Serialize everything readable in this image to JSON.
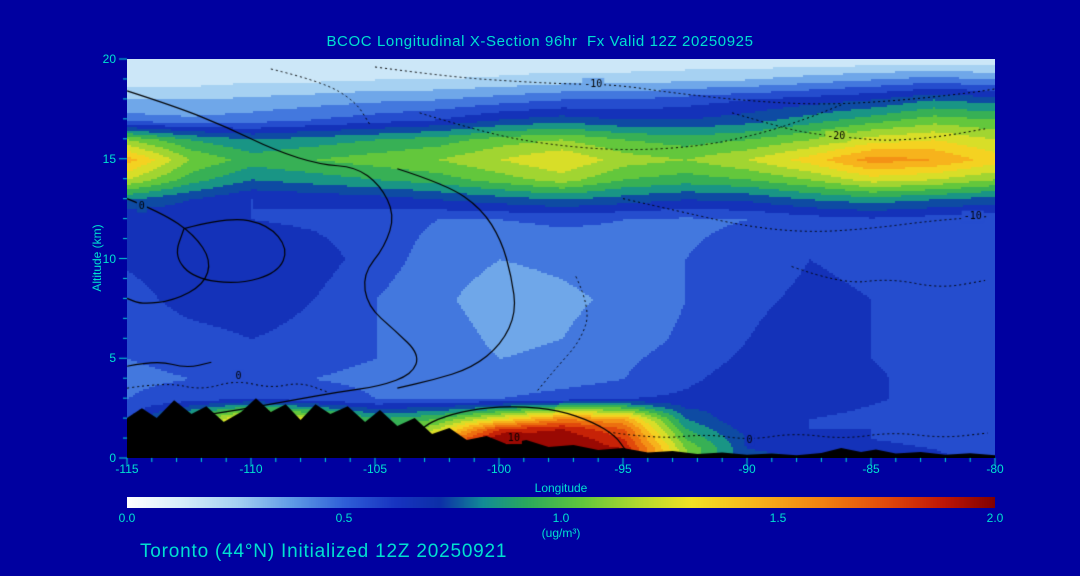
{
  "figure": {
    "title": "BCOC Longitudinal X-Section 96hr  Fx Valid 12Z 20250925",
    "caption": "Toronto (44°N) Initialized 12Z 20250921",
    "colors": {
      "background": "#0000a0",
      "text": "#00e0d0",
      "contour_line": "#000000",
      "terrain": "#000000"
    }
  },
  "chart_data": {
    "type": "heatmap",
    "title": "BCOC Longitudinal X-Section 96hr  Fx Valid 12Z 20250925",
    "caption": "Toronto (44°N) Initialized 12Z 20250921",
    "xlabel": "Longitude",
    "ylabel": "Altitude (km)",
    "units": "(ug/m³)",
    "xlim": [
      -115,
      -80
    ],
    "ylim": [
      0,
      20
    ],
    "x_ticks": [
      -115,
      -110,
      -105,
      -100,
      -95,
      -90,
      -85,
      -80
    ],
    "x_minor_step": 1,
    "y_ticks": [
      0,
      5,
      10,
      15,
      20
    ],
    "y_minor_step": 1,
    "grid_on": false,
    "colorbar": {
      "min": 0.0,
      "max": 2.0,
      "tick_labels": [
        "0.0",
        "0.5",
        "1.0",
        "1.5",
        "2.0"
      ]
    },
    "colormap": {
      "stops": [
        [
          0.0,
          "#ffffff"
        ],
        [
          0.12,
          "#d8eefa"
        ],
        [
          0.25,
          "#a6d1f2"
        ],
        [
          0.38,
          "#5f9be6"
        ],
        [
          0.5,
          "#2f5fd8"
        ],
        [
          0.62,
          "#1733c0"
        ],
        [
          0.72,
          "#0c2fa8"
        ],
        [
          0.82,
          "#128c96"
        ],
        [
          0.92,
          "#2aa95d"
        ],
        [
          1.05,
          "#63c73c"
        ],
        [
          1.18,
          "#b4d92e"
        ],
        [
          1.3,
          "#f2e224"
        ],
        [
          1.45,
          "#f7b31c"
        ],
        [
          1.6,
          "#f28211"
        ],
        [
          1.75,
          "#e1490b"
        ],
        [
          1.88,
          "#bf1606"
        ],
        [
          2.0,
          "#7f0000"
        ]
      ],
      "level_step": 0.1
    },
    "grid": {
      "lons": [
        -115,
        -112.5,
        -110,
        -107.5,
        -105,
        -102.5,
        -100,
        -97.5,
        -95,
        -92.5,
        -90,
        -87.5,
        -85,
        -82.5,
        -80
      ],
      "alts": [
        0,
        0.5,
        1,
        1.5,
        2,
        3,
        4,
        5,
        6,
        8,
        10,
        12,
        13,
        14,
        15,
        16,
        17,
        18,
        19,
        20
      ],
      "values": [
        [
          0.6,
          0.7,
          0.8,
          0.8,
          0.8,
          1.5,
          1.95,
          2.0,
          1.9,
          1.1,
          0.72,
          0.7,
          0.68,
          0.62,
          0.58
        ],
        [
          0.6,
          0.7,
          0.8,
          0.8,
          0.85,
          1.6,
          2.0,
          2.0,
          1.9,
          1.1,
          0.7,
          0.68,
          0.65,
          0.6,
          0.55
        ],
        [
          0.6,
          0.8,
          1.0,
          0.9,
          0.85,
          1.5,
          2.0,
          2.0,
          1.8,
          1.0,
          0.7,
          0.65,
          0.6,
          0.55,
          0.55
        ],
        [
          0.6,
          1.0,
          1.2,
          1.0,
          0.85,
          1.2,
          1.8,
          1.9,
          1.7,
          0.9,
          0.65,
          0.6,
          0.6,
          0.55,
          0.5
        ],
        [
          0.6,
          1.0,
          1.4,
          1.2,
          0.9,
          1.0,
          1.3,
          1.6,
          1.5,
          0.8,
          0.6,
          0.6,
          0.55,
          0.5,
          0.5
        ],
        [
          0.5,
          0.55,
          0.6,
          0.55,
          0.5,
          0.5,
          0.5,
          0.55,
          0.6,
          0.62,
          0.68,
          0.7,
          0.62,
          0.55,
          0.5
        ],
        [
          0.48,
          0.5,
          0.52,
          0.5,
          0.48,
          0.45,
          0.42,
          0.45,
          0.5,
          0.58,
          0.65,
          0.68,
          0.62,
          0.55,
          0.5
        ],
        [
          0.5,
          0.52,
          0.55,
          0.52,
          0.5,
          0.45,
          0.4,
          0.42,
          0.48,
          0.55,
          0.62,
          0.65,
          0.6,
          0.55,
          0.52
        ],
        [
          0.5,
          0.55,
          0.6,
          0.55,
          0.5,
          0.45,
          0.38,
          0.4,
          0.45,
          0.52,
          0.6,
          0.65,
          0.6,
          0.55,
          0.5
        ],
        [
          0.55,
          0.65,
          0.68,
          0.6,
          0.5,
          0.42,
          0.35,
          0.38,
          0.42,
          0.5,
          0.58,
          0.62,
          0.6,
          0.55,
          0.5
        ],
        [
          0.62,
          0.68,
          0.7,
          0.65,
          0.55,
          0.45,
          0.4,
          0.42,
          0.45,
          0.5,
          0.55,
          0.6,
          0.58,
          0.55,
          0.5
        ],
        [
          0.6,
          0.62,
          0.6,
          0.58,
          0.55,
          0.5,
          0.5,
          0.52,
          0.5,
          0.48,
          0.5,
          0.55,
          0.58,
          0.55,
          0.52
        ],
        [
          0.8,
          0.7,
          0.6,
          0.62,
          0.65,
          0.7,
          0.75,
          0.8,
          0.75,
          0.7,
          0.72,
          0.8,
          0.85,
          0.8,
          0.75
        ],
        [
          1.2,
          0.95,
          0.8,
          0.85,
          0.9,
          0.95,
          1.05,
          1.15,
          1.0,
          0.95,
          1.0,
          1.1,
          1.25,
          1.2,
          1.1
        ],
        [
          1.45,
          1.1,
          0.95,
          1.0,
          1.05,
          1.1,
          1.2,
          1.3,
          1.15,
          1.1,
          1.2,
          1.35,
          1.55,
          1.5,
          1.35
        ],
        [
          1.1,
          0.9,
          0.8,
          0.85,
          0.9,
          0.95,
          1.05,
          1.1,
          1.0,
          0.95,
          1.0,
          1.1,
          1.25,
          1.3,
          1.2
        ],
        [
          0.45,
          0.42,
          0.45,
          0.5,
          0.55,
          0.6,
          0.7,
          0.75,
          0.7,
          0.7,
          0.75,
          0.85,
          0.95,
          1.05,
          1.0
        ],
        [
          0.3,
          0.3,
          0.32,
          0.35,
          0.38,
          0.4,
          0.45,
          0.5,
          0.5,
          0.55,
          0.6,
          0.65,
          0.7,
          0.8,
          0.75
        ],
        [
          0.15,
          0.15,
          0.18,
          0.18,
          0.2,
          0.2,
          0.22,
          0.25,
          0.25,
          0.28,
          0.3,
          0.35,
          0.4,
          0.45,
          0.4
        ],
        [
          0.12,
          0.12,
          0.12,
          0.12,
          0.12,
          0.12,
          0.12,
          0.12,
          0.12,
          0.12,
          0.12,
          0.12,
          0.12,
          0.12,
          0.12
        ]
      ]
    },
    "terrain": [
      [
        -115,
        2.0
      ],
      [
        -114.4,
        2.5
      ],
      [
        -113.8,
        2.0
      ],
      [
        -113.1,
        2.9
      ],
      [
        -112.4,
        2.2
      ],
      [
        -111.8,
        2.6
      ],
      [
        -111.1,
        1.8
      ],
      [
        -110.4,
        2.3
      ],
      [
        -109.8,
        3.0
      ],
      [
        -109.2,
        2.3
      ],
      [
        -108.6,
        2.7
      ],
      [
        -108.0,
        1.9
      ],
      [
        -107.4,
        2.7
      ],
      [
        -106.8,
        2.2
      ],
      [
        -106.1,
        2.6
      ],
      [
        -105.4,
        1.8
      ],
      [
        -104.8,
        2.4
      ],
      [
        -104.1,
        1.6
      ],
      [
        -103.4,
        2.0
      ],
      [
        -102.7,
        1.2
      ],
      [
        -102.0,
        1.5
      ],
      [
        -101.3,
        0.9
      ],
      [
        -100.5,
        1.1
      ],
      [
        -99.7,
        0.7
      ],
      [
        -98.9,
        0.9
      ],
      [
        -98.0,
        0.55
      ],
      [
        -97.0,
        0.65
      ],
      [
        -96.0,
        0.4
      ],
      [
        -95.0,
        0.5
      ],
      [
        -94.0,
        0.28
      ],
      [
        -93.0,
        0.35
      ],
      [
        -92.0,
        0.2
      ],
      [
        -91.0,
        0.28
      ],
      [
        -90.0,
        0.16
      ],
      [
        -89.0,
        0.22
      ],
      [
        -88.0,
        0.14
      ],
      [
        -87.0,
        0.25
      ],
      [
        -86.2,
        0.5
      ],
      [
        -85.4,
        0.3
      ],
      [
        -84.8,
        0.42
      ],
      [
        -84.0,
        0.22
      ],
      [
        -83.0,
        0.3
      ],
      [
        -82.0,
        0.16
      ],
      [
        -81.0,
        0.24
      ],
      [
        -80.0,
        0.14
      ]
    ],
    "contours": [
      {
        "style": "solid",
        "label": "0",
        "label_pos": [
          -114.4,
          12.6
        ],
        "points": [
          [
            -115,
            13.0
          ],
          [
            -113.6,
            12.3
          ],
          [
            -112.3,
            11.2
          ],
          [
            -111.6,
            9.9
          ],
          [
            -111.9,
            8.7
          ],
          [
            -113.1,
            7.9
          ],
          [
            -114.4,
            7.7
          ],
          [
            -115,
            8.0
          ]
        ]
      },
      {
        "style": "solid",
        "label": "",
        "points": [
          [
            -115,
            18.4
          ],
          [
            -113,
            17.6
          ],
          [
            -111,
            16.6
          ],
          [
            -109,
            15.4
          ],
          [
            -107.2,
            14.7
          ],
          [
            -105.8,
            14.6
          ],
          [
            -104.8,
            13.7
          ],
          [
            -104.2,
            12.2
          ],
          [
            -104.6,
            10.6
          ],
          [
            -105.5,
            9.2
          ],
          [
            -105.3,
            7.6
          ],
          [
            -104.2,
            6.4
          ],
          [
            -103.2,
            5.2
          ],
          [
            -103.5,
            4.2
          ],
          [
            -104.8,
            3.6
          ],
          [
            -106.5,
            3.3
          ],
          [
            -108.3,
            2.9
          ],
          [
            -110.1,
            2.5
          ],
          [
            -111.6,
            2.2
          ]
        ]
      },
      {
        "style": "solid",
        "label": "",
        "points": [
          [
            -112.7,
            11.5
          ],
          [
            -110.9,
            12.1
          ],
          [
            -109.3,
            11.7
          ],
          [
            -108.5,
            10.5
          ],
          [
            -108.9,
            9.3
          ],
          [
            -110.5,
            8.7
          ],
          [
            -112.3,
            9.0
          ],
          [
            -113.1,
            10.1
          ],
          [
            -112.7,
            11.5
          ]
        ]
      },
      {
        "style": "solid",
        "label": "",
        "points": [
          [
            -104.1,
            14.5
          ],
          [
            -102.1,
            13.7
          ],
          [
            -100.7,
            12.5
          ],
          [
            -99.9,
            10.9
          ],
          [
            -99.5,
            9.1
          ],
          [
            -99.3,
            7.3
          ],
          [
            -99.9,
            5.7
          ],
          [
            -101.1,
            4.5
          ],
          [
            -102.7,
            3.9
          ],
          [
            -104.1,
            3.5
          ]
        ]
      },
      {
        "style": "solid",
        "label": "10",
        "label_pos": [
          -99.4,
          1.0
        ],
        "points": [
          [
            -103.8,
            0.4
          ],
          [
            -103.2,
            1.5
          ],
          [
            -102.2,
            2.1
          ],
          [
            -100.8,
            2.5
          ],
          [
            -99.2,
            2.6
          ],
          [
            -97.6,
            2.4
          ],
          [
            -96.2,
            1.8
          ],
          [
            -95.3,
            1.1
          ],
          [
            -94.9,
            0.4
          ]
        ]
      },
      {
        "style": "solid",
        "label": "",
        "points": [
          [
            -115,
            4.6
          ],
          [
            -113.8,
            4.9
          ],
          [
            -112.6,
            4.5
          ],
          [
            -111.6,
            4.8
          ]
        ]
      },
      {
        "style": "dotted",
        "label": "0",
        "label_pos": [
          -110.5,
          4.1
        ],
        "points": [
          [
            -115,
            3.5
          ],
          [
            -113.4,
            3.8
          ],
          [
            -112,
            3.4
          ],
          [
            -110.6,
            3.9
          ],
          [
            -109.2,
            3.5
          ],
          [
            -108,
            3.8
          ],
          [
            -106.9,
            3.3
          ]
        ]
      },
      {
        "style": "dotted",
        "label": "-10",
        "label_pos": [
          -96.2,
          18.75
        ],
        "points": [
          [
            -105,
            19.6
          ],
          [
            -102,
            19.1
          ],
          [
            -99,
            18.85
          ],
          [
            -97.2,
            18.75
          ],
          [
            -95.2,
            18.7
          ],
          [
            -93,
            18.3
          ],
          [
            -90,
            17.9
          ],
          [
            -87,
            17.7
          ],
          [
            -84,
            17.9
          ],
          [
            -81,
            18.3
          ],
          [
            -80,
            18.5
          ]
        ]
      },
      {
        "style": "dotted",
        "label": "",
        "points": [
          [
            -103.2,
            17.3
          ],
          [
            -100.6,
            16.3
          ],
          [
            -98,
            15.7
          ],
          [
            -95,
            15.4
          ],
          [
            -92,
            15.6
          ],
          [
            -89.6,
            16.2
          ],
          [
            -87.6,
            17.0
          ],
          [
            -86.2,
            17.7
          ]
        ]
      },
      {
        "style": "dotted",
        "label": "-20",
        "label_pos": [
          -86.4,
          16.1
        ],
        "points": [
          [
            -90.6,
            17.3
          ],
          [
            -88.7,
            16.6
          ],
          [
            -87.4,
            16.25
          ],
          [
            -85.4,
            16.0
          ],
          [
            -84.2,
            15.9
          ],
          [
            -82.2,
            16.1
          ],
          [
            -80.4,
            16.5
          ]
        ]
      },
      {
        "style": "dotted",
        "label": "-10",
        "label_pos": [
          -80.9,
          12.1
        ],
        "points": [
          [
            -95,
            13.0
          ],
          [
            -92.5,
            12.3
          ],
          [
            -90,
            11.6
          ],
          [
            -87.5,
            11.3
          ],
          [
            -85,
            11.5
          ],
          [
            -82.5,
            11.9
          ],
          [
            -80.3,
            12.1
          ]
        ]
      },
      {
        "style": "dotted",
        "label": "0",
        "label_pos": [
          -89.9,
          0.9
        ],
        "points": [
          [
            -95.6,
            1.3
          ],
          [
            -93.6,
            0.95
          ],
          [
            -91.6,
            1.2
          ],
          [
            -89.9,
            0.9
          ],
          [
            -88.1,
            1.25
          ],
          [
            -86.1,
            0.95
          ],
          [
            -84.1,
            1.3
          ],
          [
            -82.1,
            1.0
          ],
          [
            -80.3,
            1.25
          ]
        ]
      },
      {
        "style": "dotted",
        "label": "",
        "points": [
          [
            -96.9,
            9.1
          ],
          [
            -96.3,
            7.5
          ],
          [
            -96.7,
            5.9
          ],
          [
            -97.7,
            4.5
          ],
          [
            -98.5,
            3.3
          ]
        ]
      },
      {
        "style": "dotted",
        "label": "",
        "points": [
          [
            -88.2,
            9.6
          ],
          [
            -86.2,
            8.7
          ],
          [
            -84.2,
            9.0
          ],
          [
            -82.2,
            8.5
          ],
          [
            -80.4,
            8.9
          ]
        ]
      },
      {
        "style": "dotted",
        "label": "",
        "points": [
          [
            -109.2,
            19.5
          ],
          [
            -107.2,
            18.9
          ],
          [
            -105.8,
            17.9
          ],
          [
            -105.2,
            16.7
          ]
        ]
      }
    ]
  }
}
